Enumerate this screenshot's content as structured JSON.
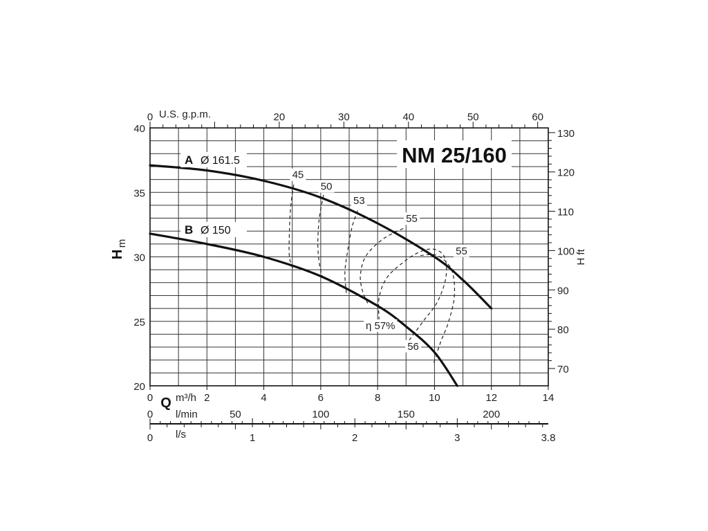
{
  "chart_data": {
    "type": "line",
    "title": "NM 25/160",
    "x_axis": {
      "label_symbol": "Q",
      "unit": "m³/h",
      "range": [
        0,
        14
      ],
      "ticks": [
        "0",
        "2",
        "4",
        "6",
        "8",
        "10",
        "12",
        "14"
      ]
    },
    "x_axis_lmin": {
      "unit": "l/min",
      "range": [
        0,
        233.33
      ],
      "ticks": [
        {
          "value": 0,
          "label": "0"
        },
        {
          "value": 50,
          "label": "50"
        },
        {
          "value": 100,
          "label": "100"
        },
        {
          "value": 150,
          "label": "150"
        },
        {
          "value": 200,
          "label": "200"
        }
      ]
    },
    "x_axis_ls": {
      "unit": "l/s",
      "range": [
        0,
        3.8889
      ],
      "ticks": [
        {
          "value": 0,
          "label": "0"
        },
        {
          "value": 1,
          "label": "1"
        },
        {
          "value": 2,
          "label": "2"
        },
        {
          "value": 3,
          "label": "3"
        },
        {
          "value": 3.8889,
          "label": "3.8"
        }
      ]
    },
    "x_axis_top": {
      "unit": "U.S. g.p.m.",
      "range": [
        0,
        61.64
      ],
      "ticks": [
        {
          "value": 0,
          "label": "0"
        },
        {
          "value": 20,
          "label": "20"
        },
        {
          "value": 30,
          "label": "30"
        },
        {
          "value": 40,
          "label": "40"
        },
        {
          "value": 50,
          "label": "50"
        },
        {
          "value": 60,
          "label": "60"
        }
      ]
    },
    "y_axis": {
      "label_symbol": "H",
      "unit": "m",
      "range": [
        20,
        40
      ],
      "ticks": [
        "20",
        "25",
        "30",
        "35",
        "40"
      ]
    },
    "y_axis_right": {
      "label": "H ft",
      "range": [
        65.6,
        131.2
      ],
      "ticks": [
        {
          "value": 70,
          "label": "70"
        },
        {
          "value": 80,
          "label": "80"
        },
        {
          "value": 90,
          "label": "90"
        },
        {
          "value": 100,
          "label": "100"
        },
        {
          "value": 110,
          "label": "110"
        },
        {
          "value": 120,
          "label": "120"
        },
        {
          "value": 130,
          "label": "130"
        }
      ]
    },
    "grid": true,
    "series": [
      {
        "name": "A",
        "diameter_label": "Ø 161.5",
        "x": [
          0,
          2,
          4,
          6,
          8,
          10,
          11,
          12
        ],
        "y": [
          37.1,
          36.7,
          35.9,
          34.6,
          32.6,
          30.0,
          28.2,
          26.0
        ]
      },
      {
        "name": "B",
        "diameter_label": "Ø 150",
        "x": [
          0,
          2,
          4,
          6,
          8,
          9,
          10,
          10.8
        ],
        "y": [
          31.8,
          31.0,
          30.0,
          28.5,
          26.2,
          24.6,
          22.6,
          20.0
        ]
      }
    ],
    "efficiency_labels": [
      {
        "text": "45",
        "x": 5.2,
        "y": 36.1
      },
      {
        "text": "50",
        "x": 6.2,
        "y": 35.2
      },
      {
        "text": "53",
        "x": 7.35,
        "y": 34.1
      },
      {
        "text": "55",
        "x": 9.2,
        "y": 32.7
      },
      {
        "text": "55",
        "x": 10.95,
        "y": 30.2
      },
      {
        "text": "η 57%",
        "x": 8.1,
        "y": 24.4
      },
      {
        "text": "56",
        "x": 9.25,
        "y": 22.8
      }
    ],
    "efficiency_contours": [
      {
        "name": "45",
        "x": [
          5.05,
          4.95,
          4.9,
          4.9,
          5.05
        ],
        "y": [
          35.6,
          34.0,
          32.0,
          30.0,
          28.9
        ]
      },
      {
        "name": "50",
        "x": [
          6.1,
          5.95,
          5.9,
          5.95,
          6.05
        ],
        "y": [
          34.8,
          33.0,
          31.0,
          29.5,
          28.5
        ]
      },
      {
        "name": "53",
        "x": [
          7.3,
          7.1,
          6.95,
          6.85,
          6.9
        ],
        "y": [
          33.6,
          32.3,
          30.5,
          28.8,
          27.2
        ]
      },
      {
        "name": "55",
        "x": [
          8.9,
          8.2,
          7.6,
          7.4,
          7.45,
          7.65
        ],
        "y": [
          32.2,
          31.4,
          30.1,
          28.7,
          27.5,
          26.4
        ]
      },
      {
        "name": "57",
        "x": [
          8.05,
          8.05,
          8.3,
          8.8,
          9.4,
          9.95,
          10.35,
          10.4,
          10.1,
          9.6,
          9.1
        ],
        "y": [
          25.1,
          26.8,
          28.3,
          29.4,
          30.3,
          30.6,
          30.0,
          28.4,
          26.5,
          25.0,
          23.5
        ]
      },
      {
        "name": "56",
        "x": [
          9.5,
          10.1,
          10.6,
          10.7,
          10.5,
          10.2,
          9.95
        ],
        "y": [
          30.1,
          30.1,
          29.0,
          27.0,
          25.0,
          23.3,
          21.6
        ]
      }
    ]
  }
}
